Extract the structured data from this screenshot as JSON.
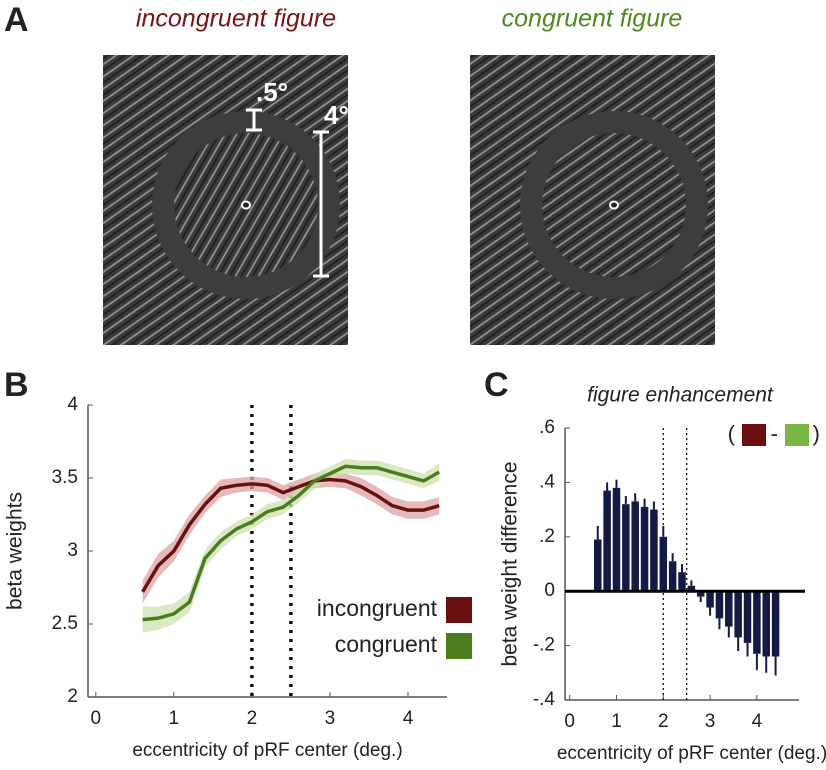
{
  "panel_labels": [
    "A",
    "B",
    "C"
  ],
  "panel_a": {
    "images": [
      {
        "label": "incongruent figure",
        "color": "#7a1414"
      },
      {
        "label": "congruent figure",
        "color": "#4e8a1e"
      }
    ],
    "annotations": [
      ".5°",
      "4°"
    ]
  },
  "chart_data": [
    {
      "type": "line",
      "xlabel": "eccentricity of pRF center (deg.)",
      "ylabel": "beta weights",
      "x": [
        0.6,
        0.8,
        1.0,
        1.2,
        1.4,
        1.6,
        1.8,
        2.0,
        2.2,
        2.4,
        2.6,
        2.8,
        3.0,
        3.2,
        3.4,
        3.6,
        3.8,
        4.0,
        4.2,
        4.4
      ],
      "series": [
        {
          "name": "incongruent",
          "color": "#6b1010",
          "band_color": "#dba3a3",
          "values": [
            2.72,
            2.9,
            3.0,
            3.18,
            3.32,
            3.43,
            3.45,
            3.46,
            3.45,
            3.4,
            3.44,
            3.48,
            3.49,
            3.48,
            3.44,
            3.38,
            3.31,
            3.28,
            3.28,
            3.31
          ],
          "errors": [
            0.08,
            0.08,
            0.07,
            0.07,
            0.06,
            0.06,
            0.05,
            0.05,
            0.05,
            0.05,
            0.05,
            0.05,
            0.05,
            0.05,
            0.06,
            0.06,
            0.06,
            0.06,
            0.06,
            0.06
          ]
        },
        {
          "name": "congruent",
          "color": "#4a7d1d",
          "band_color": "#cfe0b0",
          "values": [
            2.53,
            2.54,
            2.57,
            2.65,
            2.95,
            3.07,
            3.15,
            3.2,
            3.27,
            3.3,
            3.38,
            3.48,
            3.53,
            3.58,
            3.57,
            3.57,
            3.54,
            3.51,
            3.48,
            3.54
          ],
          "errors": [
            0.09,
            0.08,
            0.07,
            0.07,
            0.06,
            0.06,
            0.05,
            0.05,
            0.05,
            0.05,
            0.05,
            0.05,
            0.05,
            0.05,
            0.05,
            0.05,
            0.05,
            0.05,
            0.05,
            0.06
          ]
        }
      ],
      "xlim": [
        -0.1,
        4.5
      ],
      "xticks": [
        0,
        1,
        2,
        3,
        4
      ],
      "ylim": [
        2,
        4
      ],
      "yticks": [
        2,
        2.5,
        3,
        3.5,
        4
      ],
      "vlines": [
        2,
        2.5
      ],
      "legend": "lower right"
    },
    {
      "type": "bar",
      "title": "figure enhancement",
      "xlabel": "eccentricity of pRF center (deg.)",
      "ylabel": "beta weight difference",
      "x": [
        0.6,
        0.8,
        1.0,
        1.2,
        1.4,
        1.6,
        1.8,
        2.0,
        2.2,
        2.4,
        2.6,
        2.8,
        3.0,
        3.2,
        3.4,
        3.6,
        3.8,
        4.0,
        4.2,
        4.4
      ],
      "values": [
        0.19,
        0.37,
        0.38,
        0.32,
        0.33,
        0.31,
        0.3,
        0.2,
        0.11,
        0.07,
        0.02,
        -0.02,
        -0.06,
        -0.1,
        -0.13,
        -0.17,
        -0.19,
        -0.23,
        -0.24,
        -0.24
      ],
      "errors": [
        0.05,
        0.03,
        0.03,
        0.03,
        0.03,
        0.03,
        0.03,
        0.04,
        0.03,
        0.03,
        0.02,
        0.02,
        0.03,
        0.04,
        0.04,
        0.05,
        0.05,
        0.06,
        0.06,
        0.07
      ],
      "color": "#141a45",
      "xlim": [
        -0.1,
        4.9
      ],
      "xticks": [
        0,
        1,
        2,
        3,
        4
      ],
      "ylim": [
        -0.4,
        0.6
      ],
      "yticks": [
        {
          "value": -0.4,
          "label": "-.4"
        },
        {
          "value": -0.2,
          "label": "-.2"
        },
        0,
        {
          "value": 0.2,
          "label": ".2"
        },
        {
          "value": 0.4,
          "label": ".4"
        },
        {
          "value": 0.6,
          "label": ".6"
        }
      ],
      "vlines": [
        2,
        2.5
      ],
      "legend_text": [
        "(",
        "-",
        ")"
      ],
      "legend_colors": [
        "#6b1010",
        "#7ab648"
      ]
    }
  ]
}
